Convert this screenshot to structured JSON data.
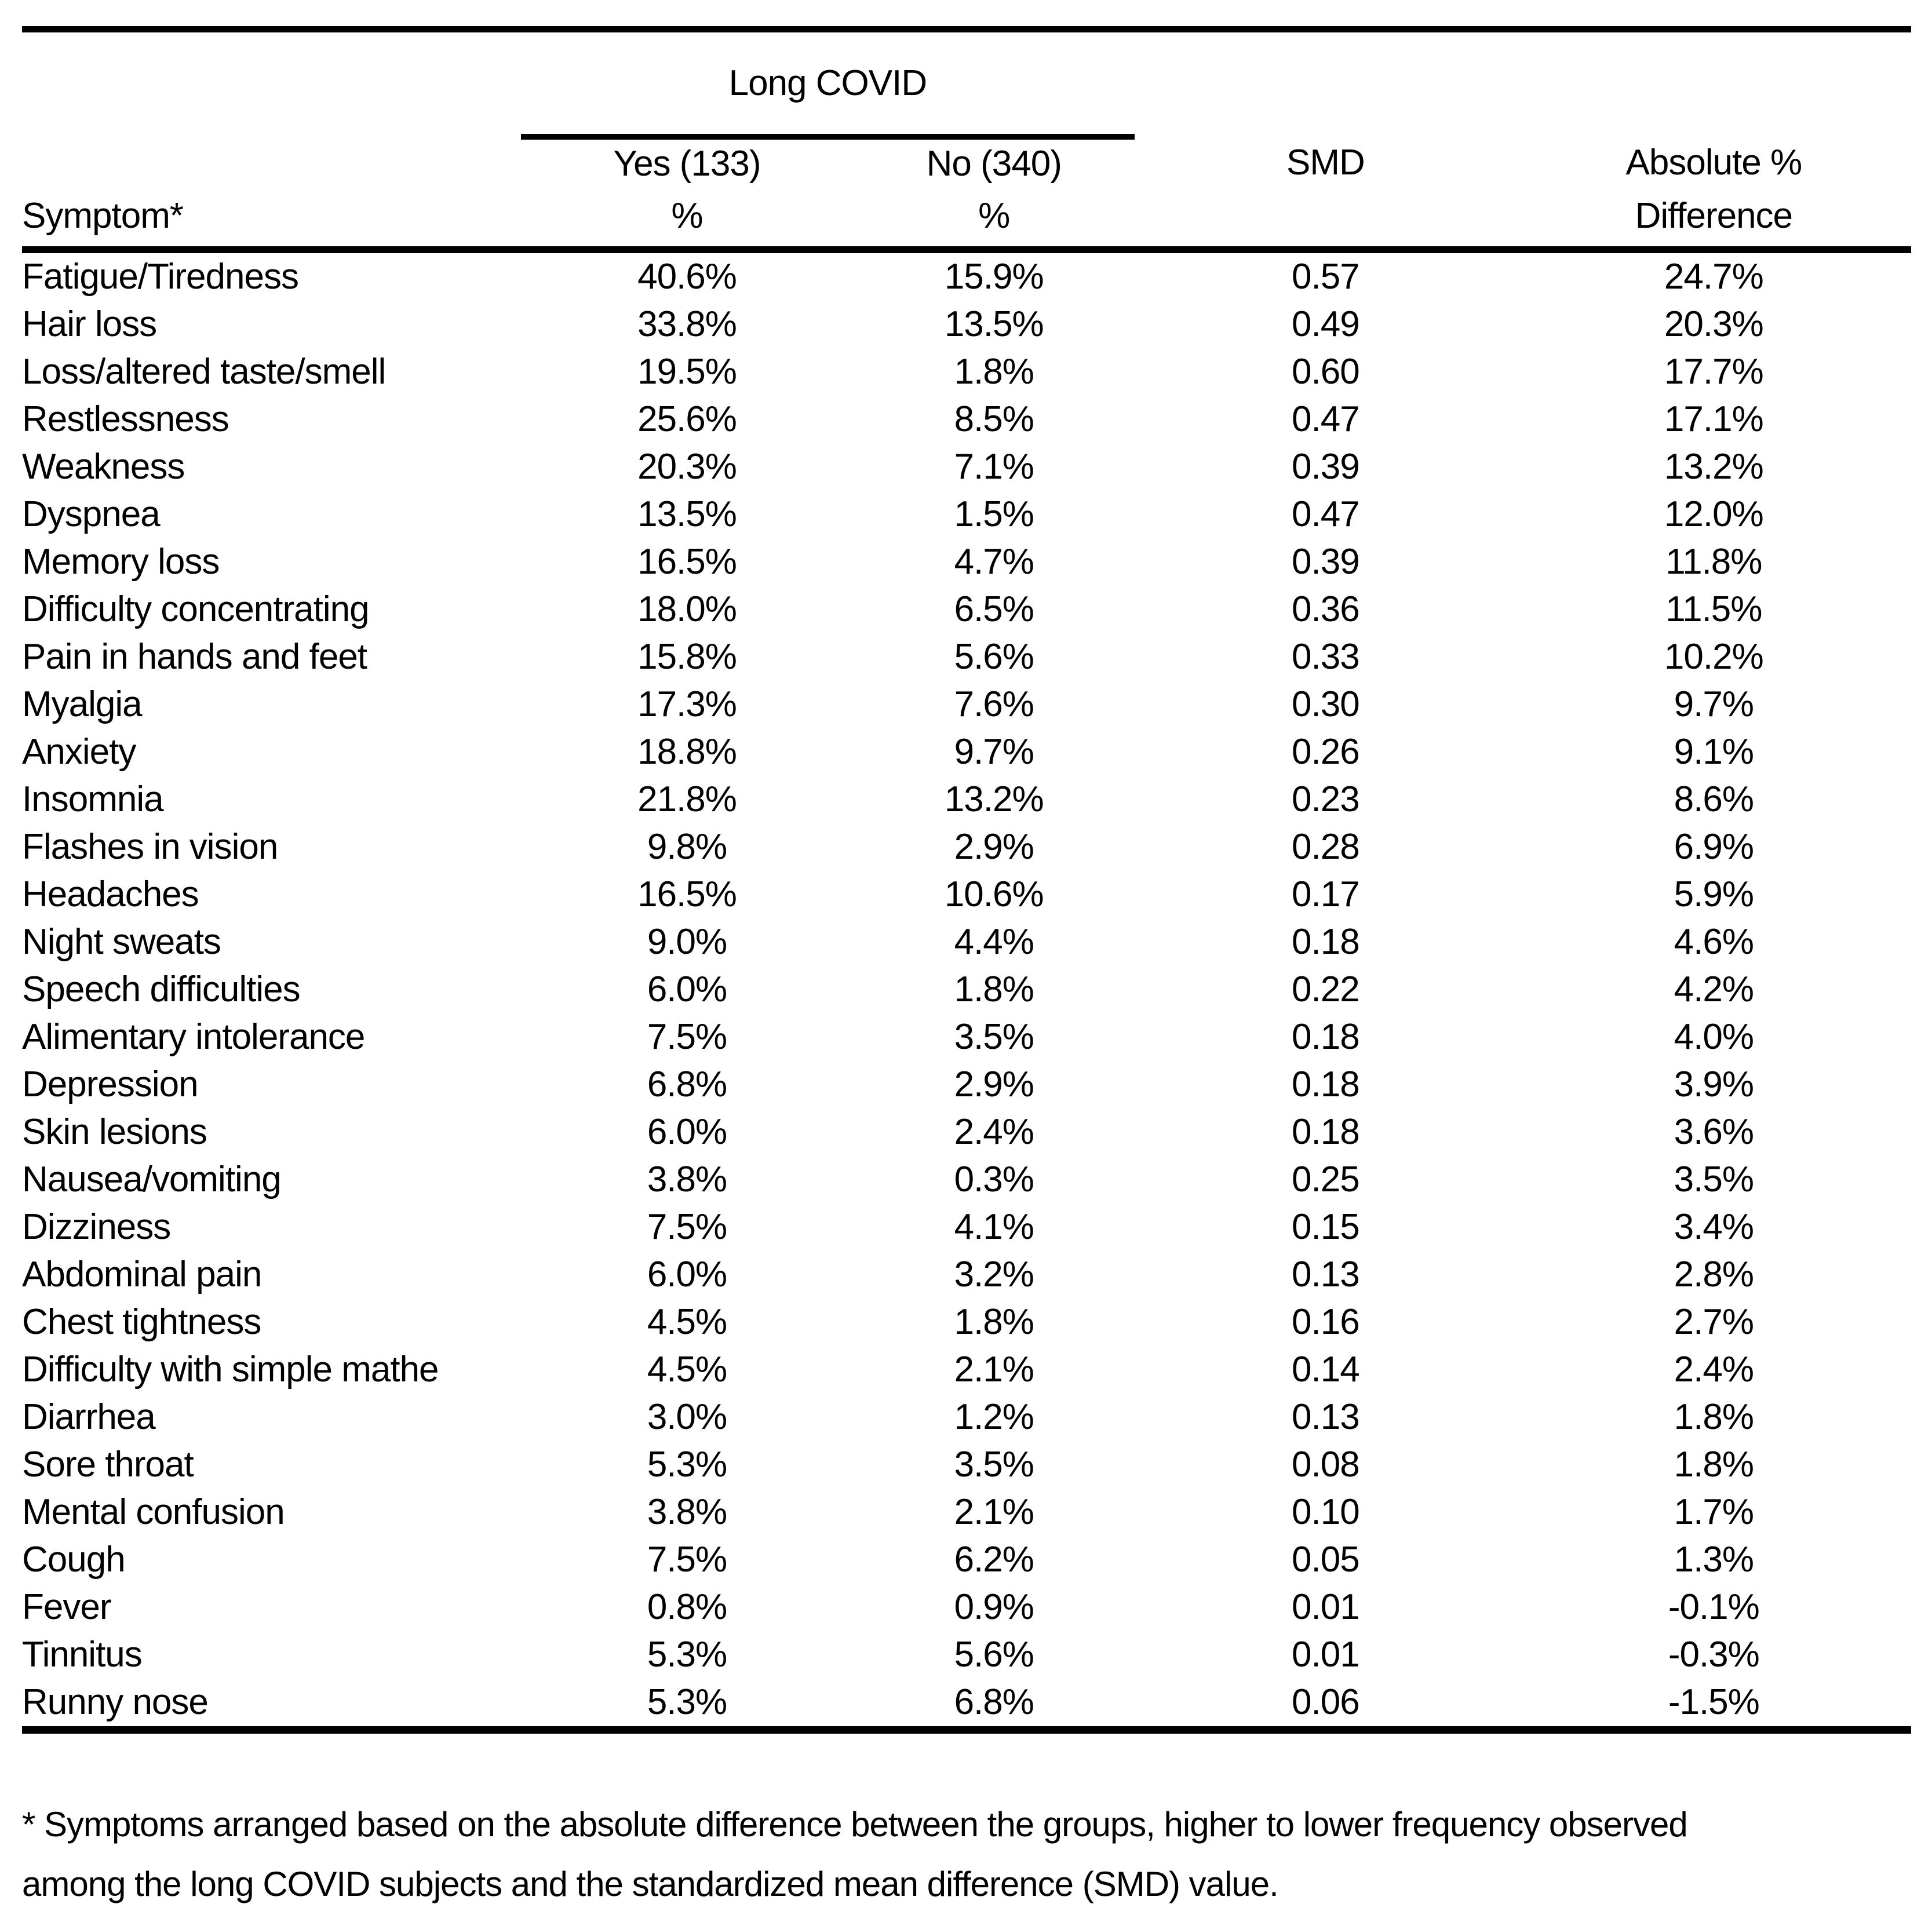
{
  "table": {
    "spanner_header": "Long COVID",
    "columns": {
      "symptom_header": "Symptom*",
      "yes_header": "Yes (133)",
      "yes_subheader": "%",
      "no_header": "No (340)",
      "no_subheader": "%",
      "smd_header": "SMD",
      "abs_header_line1": "Absolute %",
      "abs_header_line2": "Difference"
    },
    "rows": [
      {
        "symptom": "Fatigue/Tiredness",
        "yes_pct": "40.6%",
        "no_pct": "15.9%",
        "smd": "0.57",
        "abs_diff": "24.7%"
      },
      {
        "symptom": "Hair loss",
        "yes_pct": "33.8%",
        "no_pct": "13.5%",
        "smd": "0.49",
        "abs_diff": "20.3%"
      },
      {
        "symptom": "Loss/altered taste/smell",
        "yes_pct": "19.5%",
        "no_pct": "1.8%",
        "smd": "0.60",
        "abs_diff": "17.7%"
      },
      {
        "symptom": "Restlessness",
        "yes_pct": "25.6%",
        "no_pct": "8.5%",
        "smd": "0.47",
        "abs_diff": "17.1%"
      },
      {
        "symptom": "Weakness",
        "yes_pct": "20.3%",
        "no_pct": "7.1%",
        "smd": "0.39",
        "abs_diff": "13.2%"
      },
      {
        "symptom": "Dyspnea",
        "yes_pct": "13.5%",
        "no_pct": "1.5%",
        "smd": "0.47",
        "abs_diff": "12.0%"
      },
      {
        "symptom": "Memory loss",
        "yes_pct": "16.5%",
        "no_pct": "4.7%",
        "smd": "0.39",
        "abs_diff": "11.8%"
      },
      {
        "symptom": "Difficulty concentrating",
        "yes_pct": "18.0%",
        "no_pct": "6.5%",
        "smd": "0.36",
        "abs_diff": "11.5%"
      },
      {
        "symptom": "Pain in hands and feet",
        "yes_pct": "15.8%",
        "no_pct": "5.6%",
        "smd": "0.33",
        "abs_diff": "10.2%"
      },
      {
        "symptom": "Myalgia",
        "yes_pct": "17.3%",
        "no_pct": "7.6%",
        "smd": "0.30",
        "abs_diff": "9.7%"
      },
      {
        "symptom": "Anxiety",
        "yes_pct": "18.8%",
        "no_pct": "9.7%",
        "smd": "0.26",
        "abs_diff": "9.1%"
      },
      {
        "symptom": "Insomnia",
        "yes_pct": "21.8%",
        "no_pct": "13.2%",
        "smd": "0.23",
        "abs_diff": "8.6%"
      },
      {
        "symptom": "Flashes in vision",
        "yes_pct": "9.8%",
        "no_pct": "2.9%",
        "smd": "0.28",
        "abs_diff": "6.9%"
      },
      {
        "symptom": "Headaches",
        "yes_pct": "16.5%",
        "no_pct": "10.6%",
        "smd": "0.17",
        "abs_diff": "5.9%"
      },
      {
        "symptom": "Night sweats",
        "yes_pct": "9.0%",
        "no_pct": "4.4%",
        "smd": "0.18",
        "abs_diff": "4.6%"
      },
      {
        "symptom": "Speech difficulties",
        "yes_pct": "6.0%",
        "no_pct": "1.8%",
        "smd": "0.22",
        "abs_diff": "4.2%"
      },
      {
        "symptom": "Alimentary intolerance",
        "yes_pct": "7.5%",
        "no_pct": "3.5%",
        "smd": "0.18",
        "abs_diff": "4.0%"
      },
      {
        "symptom": "Depression",
        "yes_pct": "6.8%",
        "no_pct": "2.9%",
        "smd": "0.18",
        "abs_diff": "3.9%"
      },
      {
        "symptom": "Skin lesions",
        "yes_pct": "6.0%",
        "no_pct": "2.4%",
        "smd": "0.18",
        "abs_diff": "3.6%"
      },
      {
        "symptom": "Nausea/vomiting",
        "yes_pct": "3.8%",
        "no_pct": "0.3%",
        "smd": "0.25",
        "abs_diff": "3.5%"
      },
      {
        "symptom": "Dizziness",
        "yes_pct": "7.5%",
        "no_pct": "4.1%",
        "smd": "0.15",
        "abs_diff": "3.4%"
      },
      {
        "symptom": "Abdominal pain",
        "yes_pct": "6.0%",
        "no_pct": "3.2%",
        "smd": "0.13",
        "abs_diff": "2.8%"
      },
      {
        "symptom": "Chest tightness",
        "yes_pct": "4.5%",
        "no_pct": "1.8%",
        "smd": "0.16",
        "abs_diff": "2.7%"
      },
      {
        "symptom": "Difficulty with simple mathe",
        "yes_pct": "4.5%",
        "no_pct": "2.1%",
        "smd": "0.14",
        "abs_diff": "2.4%"
      },
      {
        "symptom": "Diarrhea",
        "yes_pct": "3.0%",
        "no_pct": "1.2%",
        "smd": "0.13",
        "abs_diff": "1.8%"
      },
      {
        "symptom": "Sore throat",
        "yes_pct": "5.3%",
        "no_pct": "3.5%",
        "smd": "0.08",
        "abs_diff": "1.8%"
      },
      {
        "symptom": "Mental confusion",
        "yes_pct": "3.8%",
        "no_pct": "2.1%",
        "smd": "0.10",
        "abs_diff": "1.7%"
      },
      {
        "symptom": "Cough",
        "yes_pct": "7.5%",
        "no_pct": "6.2%",
        "smd": "0.05",
        "abs_diff": "1.3%"
      },
      {
        "symptom": "Fever",
        "yes_pct": "0.8%",
        "no_pct": "0.9%",
        "smd": "0.01",
        "abs_diff": "-0.1%"
      },
      {
        "symptom": "Tinnitus",
        "yes_pct": "5.3%",
        "no_pct": "5.6%",
        "smd": "0.01",
        "abs_diff": "-0.3%"
      },
      {
        "symptom": "Runny nose",
        "yes_pct": "5.3%",
        "no_pct": "6.8%",
        "smd": "0.06",
        "abs_diff": "-1.5%"
      }
    ]
  },
  "footnote": {
    "line1": "* Symptoms arranged based on the absolute difference between the groups, higher to lower frequency observed",
    "line2": "among the long COVID subjects and the standardized mean difference (SMD) value."
  },
  "colors": {
    "text": "#000000",
    "background": "#ffffff",
    "rule": "#000000"
  }
}
